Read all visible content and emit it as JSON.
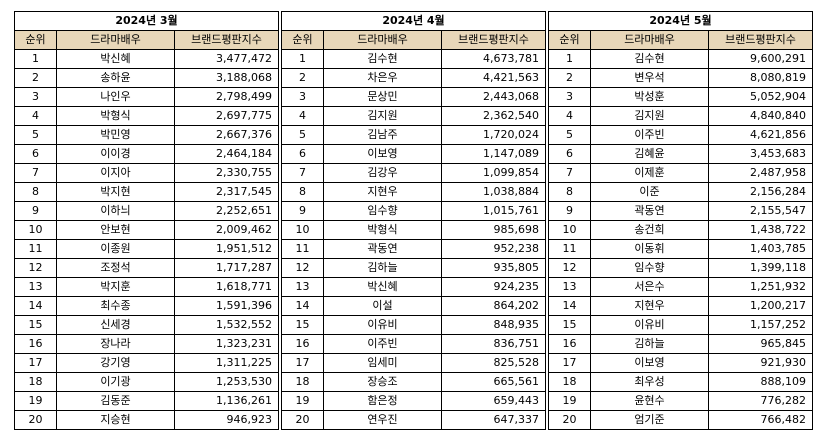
{
  "headers": [
    "순위",
    "드라마배우",
    "브랜드평판지수"
  ],
  "tables": [
    {
      "month": "2024년 3월",
      "rows": [
        [
          "1",
          "박신혜",
          "3,477,472"
        ],
        [
          "2",
          "송하윤",
          "3,188,068"
        ],
        [
          "3",
          "나인우",
          "2,798,499"
        ],
        [
          "4",
          "박형식",
          "2,697,775"
        ],
        [
          "5",
          "박민영",
          "2,667,376"
        ],
        [
          "6",
          "이이경",
          "2,464,184"
        ],
        [
          "7",
          "이지아",
          "2,330,755"
        ],
        [
          "8",
          "박지현",
          "2,317,545"
        ],
        [
          "9",
          "이하늬",
          "2,252,651"
        ],
        [
          "10",
          "안보현",
          "2,009,462"
        ],
        [
          "11",
          "이종원",
          "1,951,512"
        ],
        [
          "12",
          "조정석",
          "1,717,287"
        ],
        [
          "13",
          "박지훈",
          "1,618,771"
        ],
        [
          "14",
          "최수종",
          "1,591,396"
        ],
        [
          "15",
          "신세경",
          "1,532,552"
        ],
        [
          "16",
          "장나라",
          "1,323,231"
        ],
        [
          "17",
          "강기영",
          "1,311,225"
        ],
        [
          "18",
          "이기광",
          "1,253,530"
        ],
        [
          "19",
          "김동준",
          "1,136,261"
        ],
        [
          "20",
          "지승현",
          "946,923"
        ]
      ]
    },
    {
      "month": "2024년 4월",
      "rows": [
        [
          "1",
          "김수현",
          "4,673,781"
        ],
        [
          "2",
          "차은우",
          "4,421,563"
        ],
        [
          "3",
          "문상민",
          "2,443,068"
        ],
        [
          "4",
          "김지원",
          "2,362,540"
        ],
        [
          "5",
          "김남주",
          "1,720,024"
        ],
        [
          "6",
          "이보영",
          "1,147,089"
        ],
        [
          "7",
          "김강우",
          "1,099,854"
        ],
        [
          "8",
          "지현우",
          "1,038,884"
        ],
        [
          "9",
          "임수향",
          "1,015,761"
        ],
        [
          "10",
          "박형식",
          "985,698"
        ],
        [
          "11",
          "곽동연",
          "952,238"
        ],
        [
          "12",
          "김하늘",
          "935,805"
        ],
        [
          "13",
          "박신혜",
          "924,235"
        ],
        [
          "14",
          "이설",
          "864,202"
        ],
        [
          "15",
          "이유비",
          "848,935"
        ],
        [
          "16",
          "이주빈",
          "836,751"
        ],
        [
          "17",
          "임세미",
          "825,528"
        ],
        [
          "18",
          "장승조",
          "665,561"
        ],
        [
          "19",
          "함은정",
          "659,443"
        ],
        [
          "20",
          "연우진",
          "647,337"
        ]
      ]
    },
    {
      "month": "2024년 5월",
      "rows": [
        [
          "1",
          "김수현",
          "9,600,291"
        ],
        [
          "2",
          "변우석",
          "8,080,819"
        ],
        [
          "3",
          "박성훈",
          "5,052,904"
        ],
        [
          "4",
          "김지원",
          "4,840,840"
        ],
        [
          "5",
          "이주빈",
          "4,621,856"
        ],
        [
          "6",
          "김혜윤",
          "3,453,683"
        ],
        [
          "7",
          "이제훈",
          "2,487,958"
        ],
        [
          "8",
          "이준",
          "2,156,284"
        ],
        [
          "9",
          "곽동연",
          "2,155,547"
        ],
        [
          "10",
          "송건희",
          "1,438,722"
        ],
        [
          "11",
          "이동휘",
          "1,403,785"
        ],
        [
          "12",
          "임수향",
          "1,399,118"
        ],
        [
          "13",
          "서은수",
          "1,251,932"
        ],
        [
          "14",
          "지현우",
          "1,200,217"
        ],
        [
          "15",
          "이유비",
          "1,157,252"
        ],
        [
          "16",
          "김하늘",
          "965,845"
        ],
        [
          "17",
          "이보영",
          "921,930"
        ],
        [
          "18",
          "최우성",
          "888,109"
        ],
        [
          "19",
          "윤현수",
          "776,282"
        ],
        [
          "20",
          "엄기준",
          "766,482"
        ]
      ]
    }
  ]
}
